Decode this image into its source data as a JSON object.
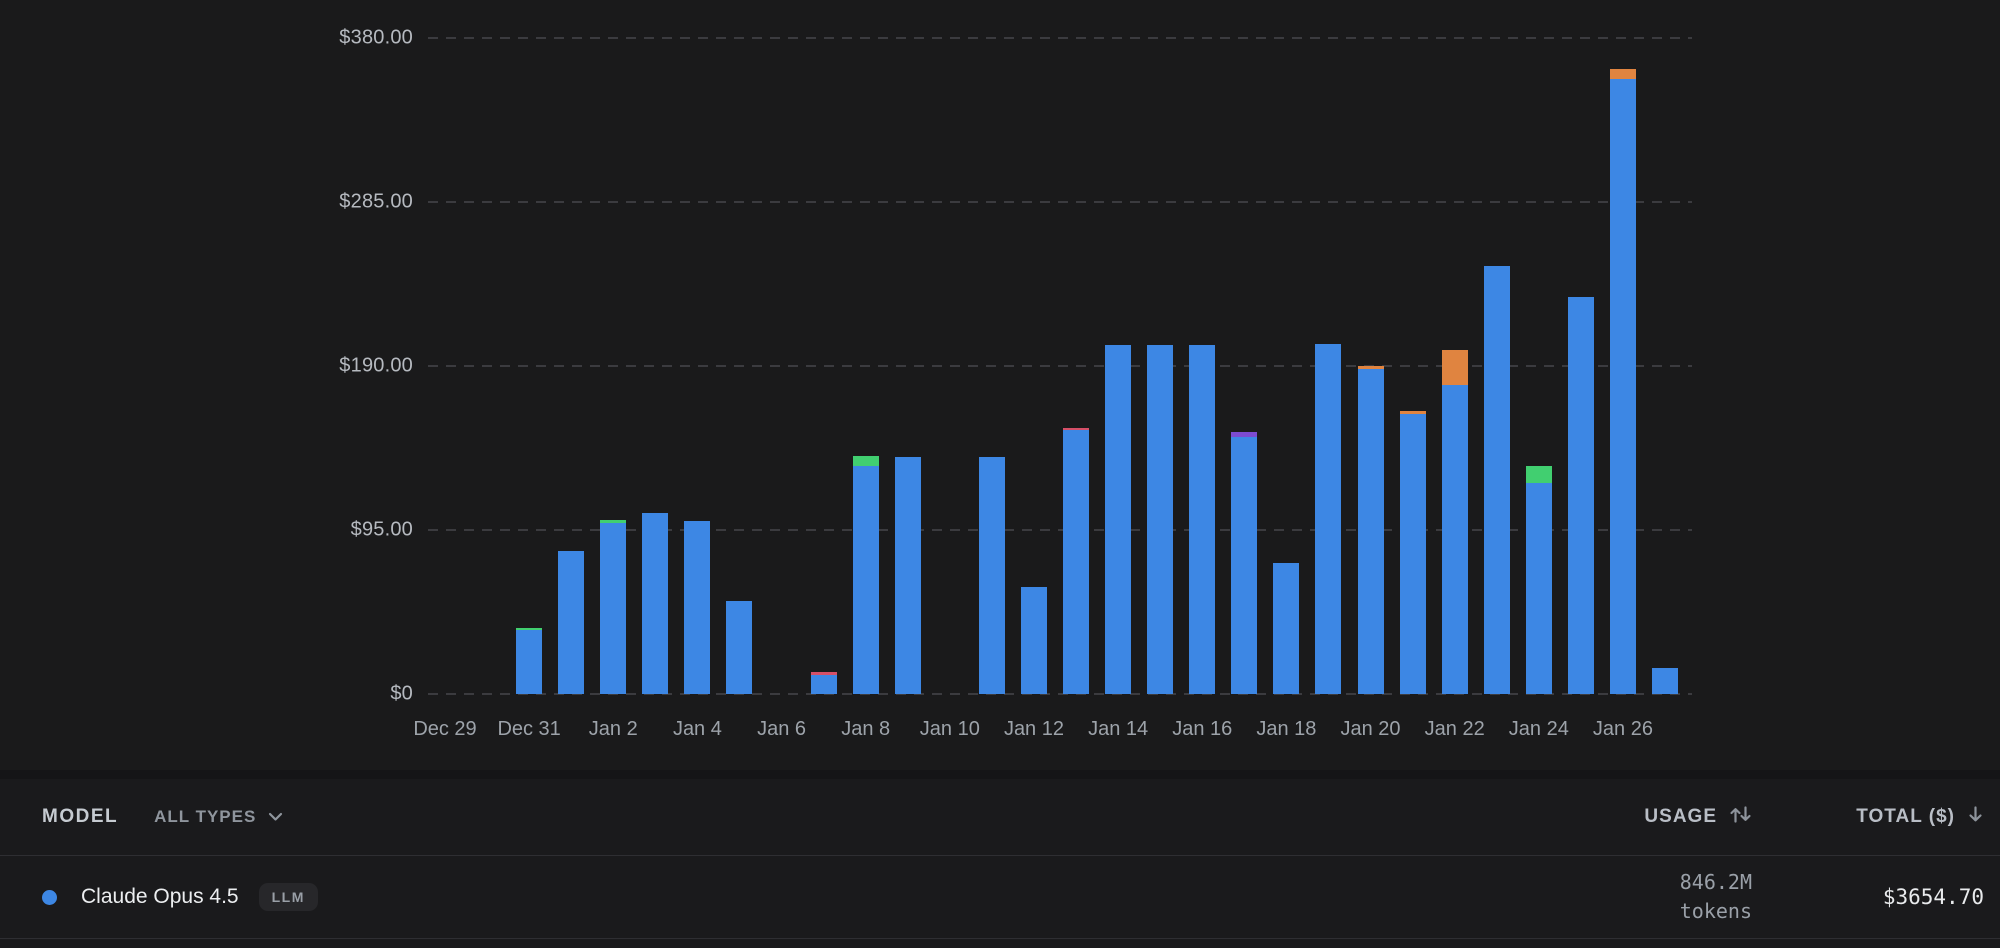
{
  "chart": {
    "y_ticks": [
      {
        "value": 0,
        "label": "$0"
      },
      {
        "value": 95,
        "label": "$95.00"
      },
      {
        "value": 190,
        "label": "$190.00"
      },
      {
        "value": 285,
        "label": "$285.00"
      },
      {
        "value": 380,
        "label": "$380.00"
      }
    ],
    "x_ticks": [
      {
        "index": 0,
        "label": "Dec 29"
      },
      {
        "index": 2,
        "label": "Dec 31"
      },
      {
        "index": 4,
        "label": "Jan 2"
      },
      {
        "index": 6,
        "label": "Jan 4"
      },
      {
        "index": 8,
        "label": "Jan 6"
      },
      {
        "index": 10,
        "label": "Jan 8"
      },
      {
        "index": 12,
        "label": "Jan 10"
      },
      {
        "index": 14,
        "label": "Jan 12"
      },
      {
        "index": 16,
        "label": "Jan 14"
      },
      {
        "index": 18,
        "label": "Jan 16"
      },
      {
        "index": 20,
        "label": "Jan 18"
      },
      {
        "index": 22,
        "label": "Jan 20"
      },
      {
        "index": 24,
        "label": "Jan 22"
      },
      {
        "index": 26,
        "label": "Jan 24"
      },
      {
        "index": 28,
        "label": "Jan 26"
      }
    ]
  },
  "chart_data": {
    "type": "bar",
    "stacked": true,
    "title": "",
    "xlabel": "",
    "ylabel": "",
    "ylim": [
      0,
      380
    ],
    "yticks": [
      0,
      95,
      190,
      285,
      380
    ],
    "grid": "dashed-horizontal",
    "legend": "none",
    "categories": [
      "Dec 29",
      "Dec 30",
      "Dec 31",
      "Jan 1",
      "Jan 2",
      "Jan 3",
      "Jan 4",
      "Jan 5",
      "Jan 6",
      "Jan 7",
      "Jan 8",
      "Jan 9",
      "Jan 10",
      "Jan 11",
      "Jan 12",
      "Jan 13",
      "Jan 14",
      "Jan 15",
      "Jan 16",
      "Jan 17",
      "Jan 18",
      "Jan 19",
      "Jan 20",
      "Jan 21",
      "Jan 22",
      "Jan 23",
      "Jan 24",
      "Jan 25",
      "Jan 26",
      "Jan 27"
    ],
    "series": [
      {
        "name": "Claude Opus 4.5",
        "color": "#3d87e4",
        "values": [
          0,
          0,
          37,
          83,
          99,
          105,
          100,
          54,
          0,
          11,
          132,
          137,
          0,
          137,
          62,
          153,
          202,
          202,
          202,
          149,
          76,
          203,
          188,
          162,
          179,
          248,
          122,
          230,
          356,
          15
        ]
      },
      {
        "name": "unlabeled-green",
        "color": "#41cf70",
        "values": [
          0,
          0,
          1,
          0,
          2,
          0,
          0,
          0,
          0,
          0,
          6,
          0,
          0,
          0,
          0,
          0,
          0,
          0,
          0,
          0,
          0,
          0,
          0,
          0,
          0,
          0,
          10,
          0,
          0,
          0
        ]
      },
      {
        "name": "unlabeled-orange",
        "color": "#e08440",
        "values": [
          0,
          0,
          0,
          0,
          0,
          0,
          0,
          0,
          0,
          0,
          0,
          0,
          0,
          0,
          0,
          0,
          0,
          0,
          0,
          0,
          0,
          0,
          2,
          2,
          20,
          0,
          0,
          0,
          6,
          0
        ]
      },
      {
        "name": "unlabeled-purple",
        "color": "#7c4bd1",
        "values": [
          0,
          0,
          0,
          0,
          0,
          0,
          0,
          0,
          0,
          0,
          0,
          0,
          0,
          0,
          0,
          0,
          0,
          0,
          0,
          3,
          0,
          0,
          0,
          0,
          0,
          0,
          0,
          0,
          0,
          0
        ]
      },
      {
        "name": "unlabeled-pink",
        "color": "#d65068",
        "values": [
          0,
          0,
          0,
          0,
          0,
          0,
          0,
          0,
          0,
          2,
          0,
          0,
          0,
          0,
          0,
          1,
          0,
          0,
          0,
          0,
          0,
          0,
          0,
          0,
          0,
          0,
          0,
          0,
          0,
          0
        ]
      }
    ]
  },
  "table": {
    "header": {
      "model": "MODEL",
      "type_filter": "ALL TYPES",
      "usage": "USAGE",
      "total": "TOTAL ($)"
    },
    "row": {
      "model": "Claude Opus 4.5",
      "badge": "LLM",
      "usage_amount": "846.2M",
      "usage_unit": "tokens",
      "total": "$3654.70",
      "dot_color": "#3d87e4"
    }
  },
  "colors": {
    "background": "#1a1a1b",
    "accent_blue": "#3d87e4",
    "green": "#41cf70",
    "orange": "#e08440",
    "purple": "#7c4bd1",
    "pink": "#d65068",
    "gridline": "#3b3b3f"
  }
}
